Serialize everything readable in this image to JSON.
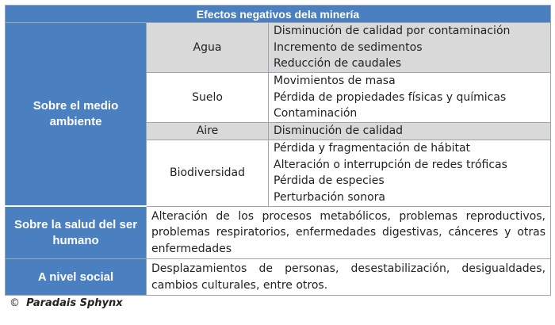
{
  "table": {
    "title": "Efectos negativos dela minería",
    "sections": {
      "environment": {
        "label": "Sobre el medio ambiente",
        "rows": [
          {
            "sub": "Agua",
            "effects": [
              "Disminución de calidad por contaminación",
              "Incremento de sedimentos",
              "Reducción de caudales"
            ]
          },
          {
            "sub": "Suelo",
            "effects": [
              "Movimientos de masa",
              "Pérdida de propiedades físicas y químicas",
              "Contaminación"
            ]
          },
          {
            "sub": "Aire",
            "effects": [
              "Disminución de calidad"
            ]
          },
          {
            "sub": "Biodiversidad",
            "effects": [
              "Pérdida y fragmentación de hábitat",
              "Alteración o interrupción de redes tróficas",
              "Pérdida de especies",
              "Perturbación sonora"
            ]
          }
        ]
      },
      "health": {
        "label": "Sobre la salud del ser humano",
        "text": "Alteración de los procesos metabólicos, problemas reproductivos, problemas respiratorios, enfermedades digestivas, cánceres y otras enfermedades"
      },
      "social": {
        "label": "A nivel social",
        "text": "Desplazamientos de personas, desestabilización, desigualdades, cambios culturales, entre otros."
      }
    }
  },
  "footer": {
    "symbol": "©",
    "owner": "Paradais Sphynx"
  },
  "colors": {
    "header_blue": "#4a7fc0",
    "row_grey": "#d9d9d9"
  }
}
